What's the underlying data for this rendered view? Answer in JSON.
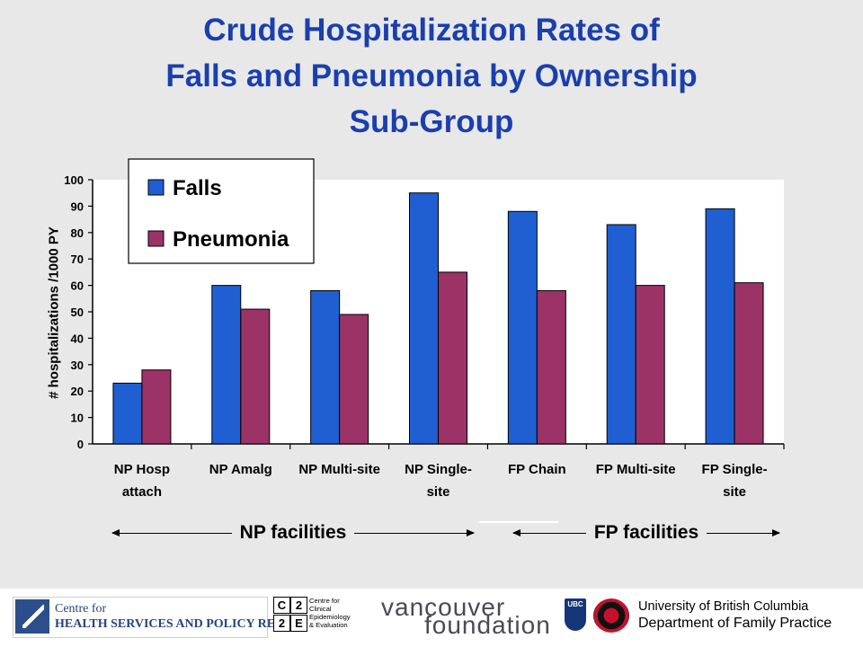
{
  "title": {
    "line1": "Crude Hospitalization Rates of",
    "line2": "Falls and Pneumonia by Ownership",
    "line3": "Sub-Group"
  },
  "chart_data": {
    "type": "bar",
    "ylabel": "# hospitalizations /1000 PY",
    "ylim": [
      0,
      100
    ],
    "yticks": [
      "0",
      "10",
      "20",
      "30",
      "40",
      "50",
      "60",
      "70",
      "80",
      "90",
      "100"
    ],
    "categories": [
      [
        "NP Hosp",
        "attach"
      ],
      [
        "NP Amalg"
      ],
      [
        "NP Multi-site"
      ],
      [
        "NP Single-",
        "site"
      ],
      [
        "FP Chain"
      ],
      [
        "FP Multi-site"
      ],
      [
        "FP Single-",
        "site"
      ]
    ],
    "series": [
      {
        "name": "Falls",
        "color": "#1f5fd1",
        "values": [
          23,
          60,
          58,
          95,
          88,
          83,
          89
        ]
      },
      {
        "name": "Pneumonia",
        "color": "#9b3366",
        "values": [
          28,
          51,
          49,
          65,
          58,
          60,
          61
        ]
      }
    ],
    "legend_position": "top-left",
    "grid": false
  },
  "groups": {
    "np": "NP facilities",
    "fp": "FP facilities"
  },
  "logos": {
    "chspr": {
      "line1": "Centre for",
      "line2": "HEALTH SERVICES AND POLICY RESEARCH"
    },
    "c2e": {
      "cells": [
        "C",
        "2",
        "2",
        "E"
      ],
      "text": "Centre for\nClinical\nEpidemiology\n& Evaluation"
    },
    "vancouver": {
      "line1": "vancouver",
      "line2": "foundation"
    },
    "ubc": {
      "shield": "UBC",
      "line1": "University of British Columbia",
      "line2": "Department of Family Practice"
    }
  }
}
